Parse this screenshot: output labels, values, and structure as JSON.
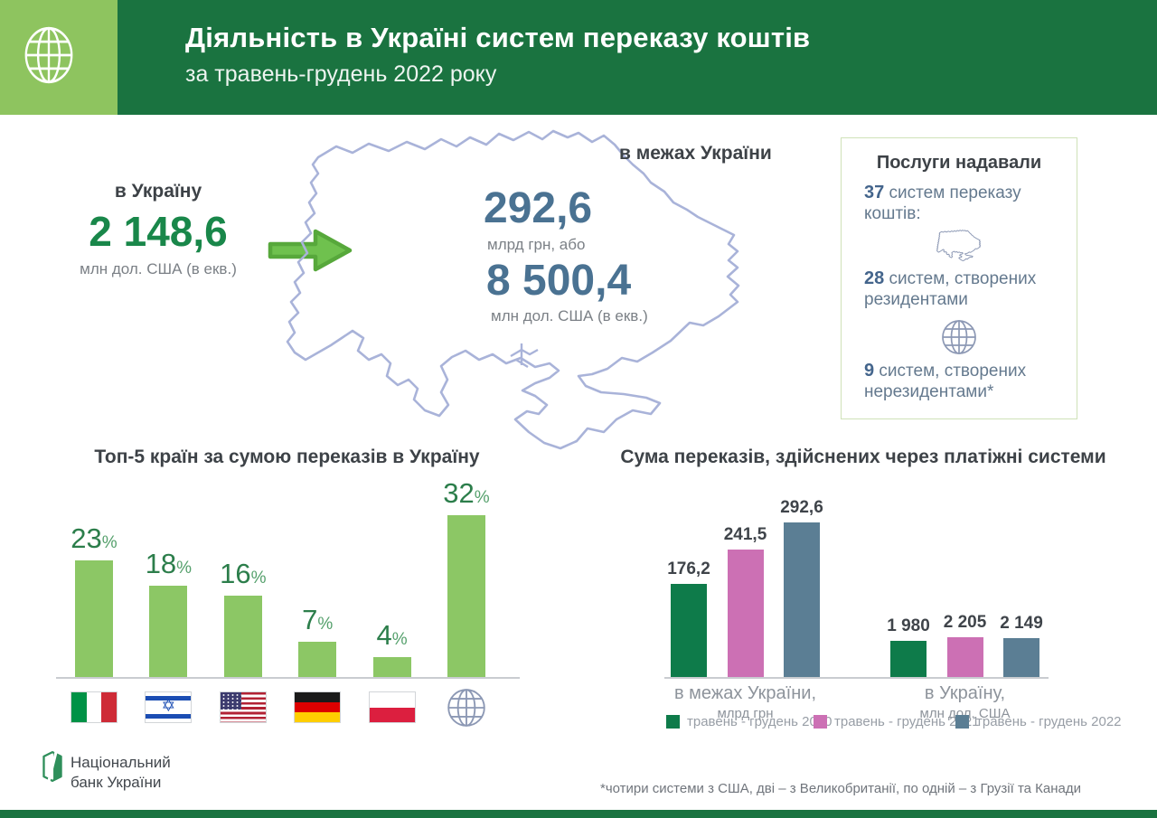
{
  "header": {
    "title": "Діяльність в Україні систем переказу коштів",
    "subtitle": "за травень-грудень 2022 року"
  },
  "inbound": {
    "label": "в Україну",
    "value": "2 148,6",
    "unit": "млн дол. США (в екв.)"
  },
  "domestic": {
    "label": "в межах України",
    "value_uah": "292,6",
    "unit_uah": "млрд грн, або",
    "value_usd": "8 500,4",
    "unit_usd": "млн дол. США (в екв.)"
  },
  "services_panel": {
    "title": "Послуги надавали",
    "total": {
      "value": "37",
      "text": " систем переказу коштів:"
    },
    "resident": {
      "value": "28",
      "text": " систем, створених резидентами",
      "icon": "ukraine-map-icon"
    },
    "nonresident": {
      "value": "9",
      "text": " систем, створених нерезидентами*",
      "icon": "globe-icon"
    }
  },
  "chart_data": [
    {
      "type": "bar",
      "title": "Топ-5 країн за сумою переказів в Україну",
      "unit": "%",
      "categories": [
        "Італія",
        "Ізраїль",
        "США",
        "Німеччина",
        "Польща",
        "інші країни"
      ],
      "flags": [
        "italy",
        "israel",
        "usa",
        "germany",
        "poland",
        "globe"
      ],
      "values": [
        23,
        18,
        16,
        7,
        4,
        32
      ],
      "labels": [
        "23",
        "18",
        "16",
        "7",
        "4",
        "32"
      ],
      "bar_color": "#8cc765",
      "ylim": [
        0,
        32
      ]
    },
    {
      "type": "grouped-bar",
      "title": "Сума переказів, здійснених через платіжні системи",
      "series": [
        {
          "name": "травень - грудень 2020",
          "color": "#0e7b4a"
        },
        {
          "name": "травень - грудень 2021",
          "color": "#cc70b4"
        },
        {
          "name": "травень - грудень 2022",
          "color": "#5b7e94"
        }
      ],
      "groups": [
        {
          "label": "в межах України,",
          "sublabel": "млрд грн",
          "values": [
            176.2,
            241.5,
            292.6
          ],
          "labels": [
            "176,2",
            "241,5",
            "292,6"
          ]
        },
        {
          "label": "в Україну,",
          "sublabel": "млн дол. США",
          "values": [
            1980,
            2205,
            2149
          ],
          "labels": [
            "1 980",
            "2 205",
            "2 149"
          ]
        }
      ],
      "legend_position": "bottom"
    }
  ],
  "footer": {
    "org_line1": "Національний",
    "org_line2": "банк України",
    "footnote": "*чотири системи з США, дві – з Великобританії, по одній – з Грузії та Канади"
  },
  "colors": {
    "header_green": "#1a7340",
    "light_green": "#8ec45f",
    "accent_green": "#19874a",
    "slate_blue": "#4a7292",
    "map_outline": "#a9b3d9",
    "bar_light_green": "#8cc765"
  }
}
